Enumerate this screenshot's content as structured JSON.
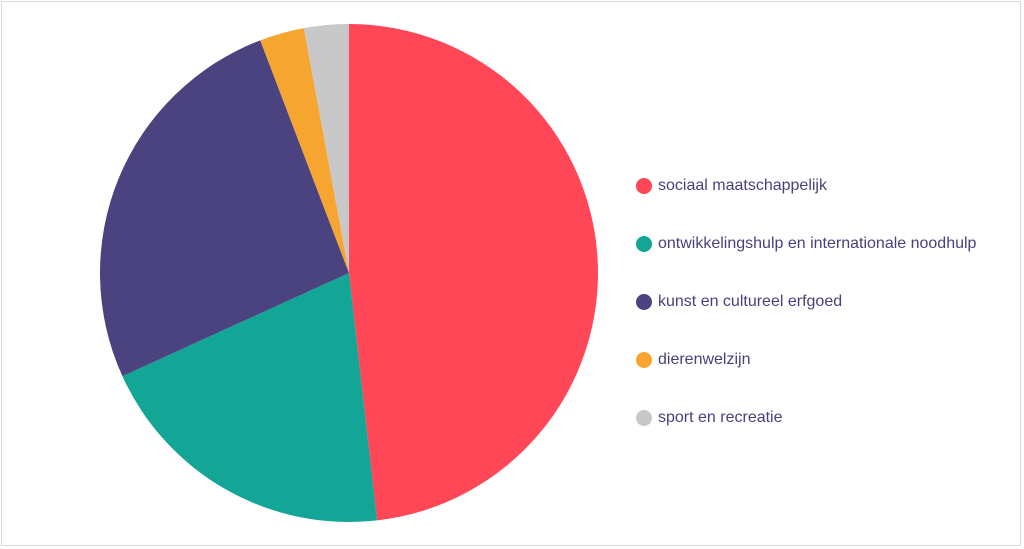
{
  "chart_data": {
    "type": "pie",
    "title": "",
    "legend_position": "right",
    "start_angle_deg": 0,
    "direction": "clockwise",
    "series": [
      {
        "slices": [
          {
            "label": "sociaal maatschappelijk",
            "value": 48.2,
            "color": "#ff4757"
          },
          {
            "label": "ontwikkelingshulp en internationale noodhulp",
            "value": 20.0,
            "color": "#13a596"
          },
          {
            "label": "kunst en cultureel erfgoed",
            "value": 26.0,
            "color": "#4a4380"
          },
          {
            "label": "dierenwelzijn",
            "value": 2.9,
            "color": "#f7a531"
          },
          {
            "label": "sport en recreatie",
            "value": 2.9,
            "color": "#c8c8c8"
          }
        ]
      }
    ]
  }
}
